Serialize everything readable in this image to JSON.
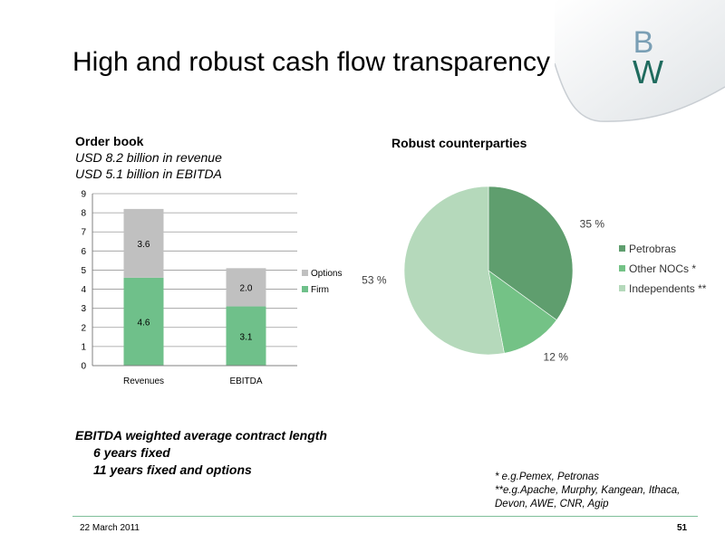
{
  "header": {
    "title": "High and robust cash flow transparency"
  },
  "order_book": {
    "heading": "Order book",
    "line1": "USD 8.2 billion in revenue",
    "line2": "USD 5.1 billion in EBITDA"
  },
  "pie_title": "Robust counterparties",
  "contract": {
    "heading": "EBITDA weighted average contract length",
    "line1": "6 years fixed",
    "line2": "11 years fixed and options"
  },
  "notes": {
    "line1": "* e.g.Pemex, Petronas",
    "line2": "**e.g.Apache, Murphy, Kangean, Ithaca, Devon, AWE, CNR, Agip"
  },
  "footer": {
    "date": "22 March  2011",
    "page": "51"
  },
  "colors": {
    "firm": "#6fc08a",
    "options": "#c0c0c0",
    "petrobras": "#5f9e6e",
    "other_nocs": "#74c286",
    "independents": "#b5d9bb",
    "accent_line": "#7fbf9a"
  },
  "chart_data": [
    {
      "type": "bar",
      "stacked": true,
      "categories": [
        "Revenues",
        "EBITDA"
      ],
      "series": [
        {
          "name": "Firm",
          "values": [
            4.6,
            3.1
          ],
          "labels": [
            "4.6",
            "3.1"
          ]
        },
        {
          "name": "Options",
          "values": [
            3.6,
            2.0
          ],
          "labels": [
            "3.6",
            "2.0"
          ]
        }
      ],
      "ylim": [
        0,
        9
      ],
      "yticks": [
        "0",
        "1",
        "2",
        "3",
        "4",
        "5",
        "6",
        "7",
        "8",
        "9"
      ],
      "grid": true,
      "legend": "right"
    },
    {
      "type": "pie",
      "title": "Robust counterparties",
      "slices": [
        {
          "name": "Petrobras",
          "value": 35,
          "label": "35 %"
        },
        {
          "name": "Other NOCs *",
          "value": 12,
          "label": "12 %"
        },
        {
          "name": "Independents **",
          "value": 53,
          "label": "53 %"
        }
      ],
      "legend": "right"
    }
  ]
}
